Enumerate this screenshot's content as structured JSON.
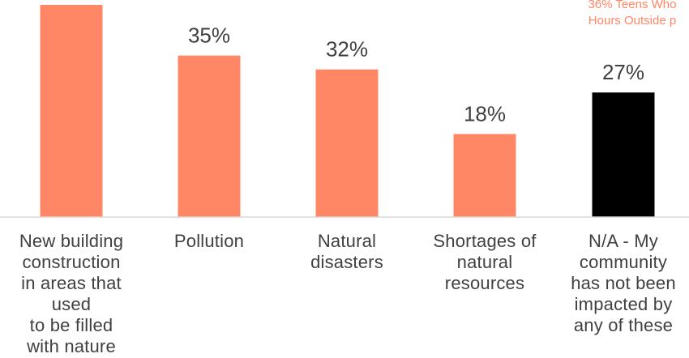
{
  "chart_data": {
    "type": "bar",
    "categories": [
      "New building\nconstruction\nin areas that\nused\nto be filled\nwith nature",
      "Pollution",
      "Natural\ndisasters",
      "Shortages of\nnatural\nresources",
      "N/A - My\ncommunity\nhas not been\nimpacted by\nany of these"
    ],
    "values": [
      46,
      35,
      32,
      18,
      27
    ],
    "data_labels": [
      "",
      "35%",
      "32%",
      "18%",
      "27%"
    ],
    "bar_colors": [
      "#ff8766",
      "#ff8766",
      "#ff8766",
      "#ff8766",
      "#000000"
    ],
    "annotation": [
      "36% Teens Who",
      "Hours Outside p"
    ],
    "annotation_color": "#ff8766",
    "grid": false,
    "ylim": [
      0,
      46
    ]
  }
}
